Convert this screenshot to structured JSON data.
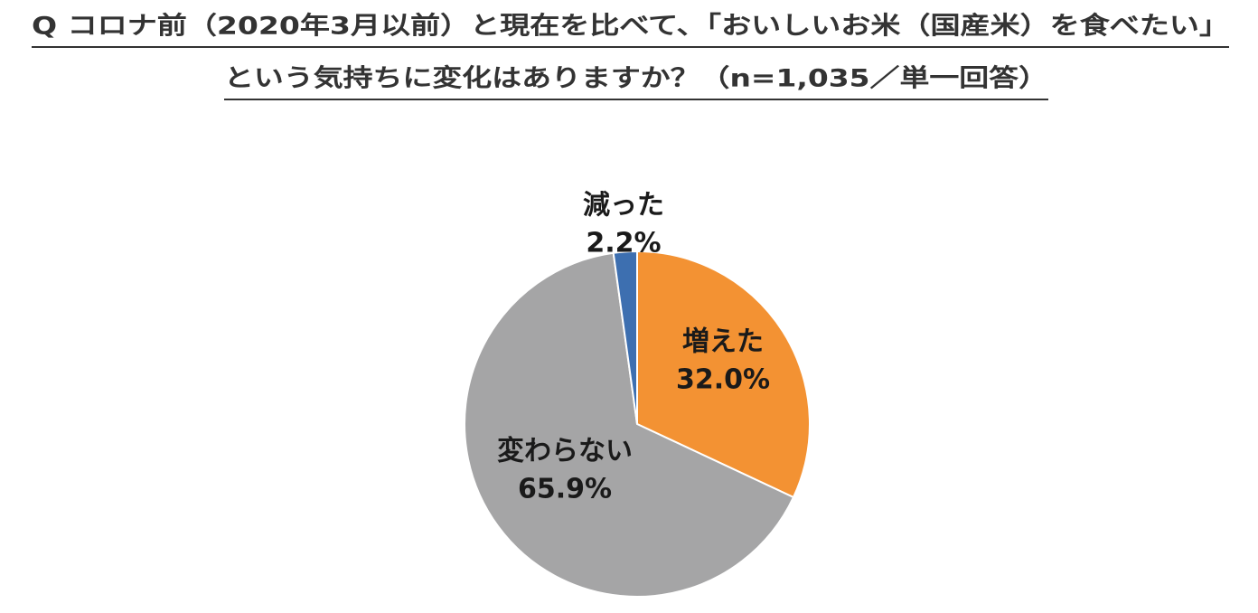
{
  "chart_data": {
    "type": "pie",
    "title": [
      "Q コロナ前（2020年3月以前）と現在を比べて、「おいしいお米（国産米）を食べたい」",
      "という気持ちに変化はありますか？（n=1,035／単一回答）"
    ],
    "categories": [
      "増えた",
      "変わらない",
      "減った"
    ],
    "values": [
      32.0,
      65.9,
      2.2
    ],
    "value_labels": [
      "32.0%",
      "65.9%",
      "2.2%"
    ],
    "colors": [
      "#f39233",
      "#a5a5a6",
      "#3d6fb0"
    ]
  }
}
